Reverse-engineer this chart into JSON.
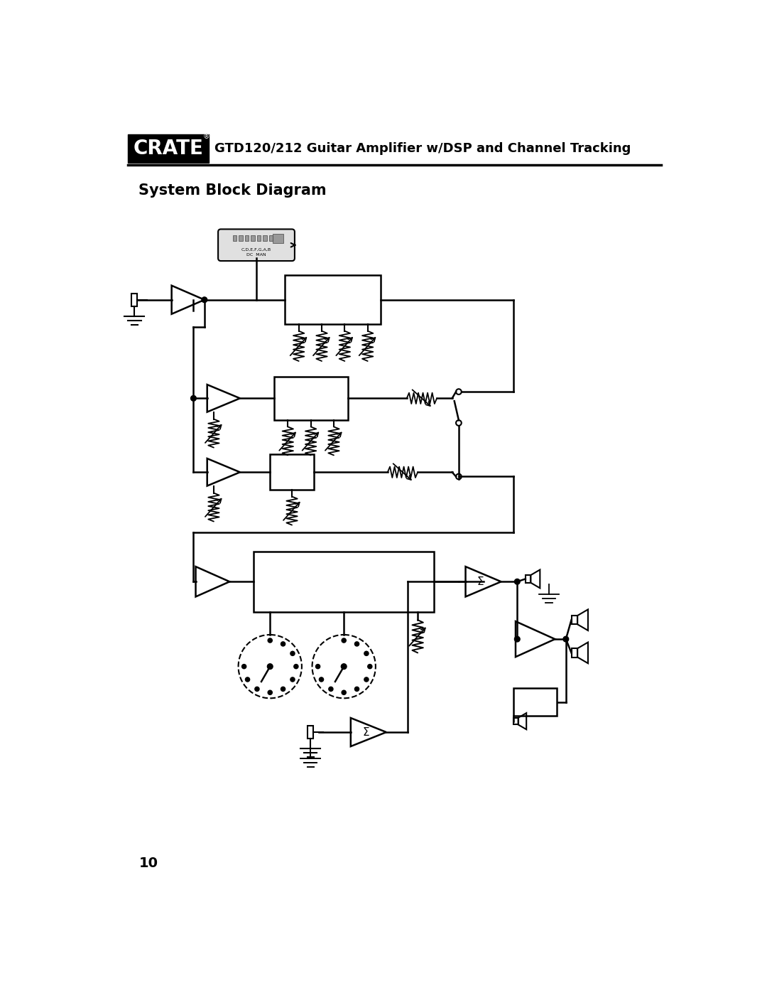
{
  "title_text": "GTD120/212 Guitar Amplifier w/DSP and Channel Tracking",
  "subtitle": "System Block Diagram",
  "bg_color": "#ffffff",
  "line_color": "#000000",
  "page_number": "10",
  "fig_width": 10.8,
  "fig_height": 13.97
}
